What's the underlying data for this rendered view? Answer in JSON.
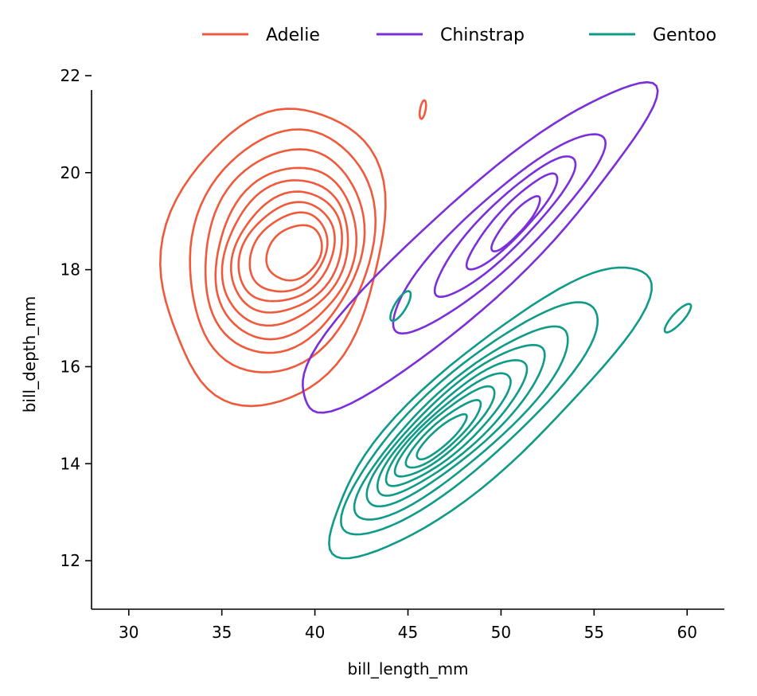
{
  "chart_data": {
    "type": "kde-contour",
    "title": "",
    "xlabel": "bill_length_mm",
    "ylabel": "bill_depth_mm",
    "xlim": [
      28,
      62
    ],
    "ylim": [
      11,
      22
    ],
    "x_ticks": [
      30,
      35,
      40,
      45,
      50,
      55,
      60
    ],
    "y_ticks": [
      12,
      14,
      16,
      18,
      20,
      22
    ],
    "legend_position": "top-right",
    "grid": false,
    "series": [
      {
        "name": "Adelie",
        "color": "#f05a3c",
        "levels": [
          {
            "cx": 37.8,
            "cy": 18.3,
            "rx": 6.0,
            "ry": 3.0,
            "tilt": 0.12
          },
          {
            "cx": 38.2,
            "cy": 18.4,
            "rx": 5.0,
            "ry": 2.45,
            "tilt": 0.12
          },
          {
            "cx": 38.3,
            "cy": 18.4,
            "rx": 4.3,
            "ry": 2.05,
            "tilt": 0.12
          },
          {
            "cx": 38.4,
            "cy": 18.35,
            "rx": 3.8,
            "ry": 1.72,
            "tilt": 0.12
          },
          {
            "cx": 38.4,
            "cy": 18.35,
            "rx": 3.4,
            "ry": 1.45,
            "tilt": 0.12
          },
          {
            "cx": 38.5,
            "cy": 18.35,
            "rx": 3.0,
            "ry": 1.2,
            "tilt": 0.12
          },
          {
            "cx": 38.5,
            "cy": 18.35,
            "rx": 2.6,
            "ry": 0.98,
            "tilt": 0.12
          },
          {
            "cx": 38.6,
            "cy": 18.35,
            "rx": 2.1,
            "ry": 0.78,
            "tilt": 0.12
          },
          {
            "cx": 38.9,
            "cy": 18.35,
            "rx": 1.5,
            "ry": 0.55,
            "tilt": 0.1
          }
        ],
        "islands": [
          {
            "cx": 45.8,
            "cy": 21.3,
            "rx": 0.22,
            "ry": 0.13,
            "tilt": 0.9
          }
        ]
      },
      {
        "name": "Chinstrap",
        "color": "#7b2fd9",
        "levels": [
          {
            "cx": 48.5,
            "cy": 18.4,
            "rx": 10.0,
            "ry": 1.3,
            "tilt": 0.32
          },
          {
            "cx": 49.8,
            "cy": 18.75,
            "rx": 6.0,
            "ry": 0.85,
            "tilt": 0.32
          },
          {
            "cx": 50.2,
            "cy": 18.9,
            "rx": 4.0,
            "ry": 0.6,
            "tilt": 0.34
          },
          {
            "cx": 50.6,
            "cy": 19.0,
            "rx": 2.6,
            "ry": 0.4,
            "tilt": 0.36
          },
          {
            "cx": 50.8,
            "cy": 18.95,
            "rx": 1.4,
            "ry": 0.25,
            "tilt": 0.38
          }
        ],
        "islands": []
      },
      {
        "name": "Gentoo",
        "color": "#0f9b88",
        "levels": [
          {
            "cx": 49.2,
            "cy": 15.1,
            "rx": 9.0,
            "ry": 1.45,
            "tilt": 0.3
          },
          {
            "cx": 48.3,
            "cy": 14.95,
            "rx": 7.2,
            "ry": 1.15,
            "tilt": 0.3
          },
          {
            "cx": 47.9,
            "cy": 14.85,
            "rx": 6.0,
            "ry": 0.95,
            "tilt": 0.3
          },
          {
            "cx": 47.6,
            "cy": 14.8,
            "rx": 5.0,
            "ry": 0.8,
            "tilt": 0.3
          },
          {
            "cx": 47.4,
            "cy": 14.75,
            "rx": 4.2,
            "ry": 0.67,
            "tilt": 0.3
          },
          {
            "cx": 47.2,
            "cy": 14.7,
            "rx": 3.5,
            "ry": 0.55,
            "tilt": 0.3
          },
          {
            "cx": 47.0,
            "cy": 14.65,
            "rx": 2.8,
            "ry": 0.44,
            "tilt": 0.3
          },
          {
            "cx": 46.9,
            "cy": 14.6,
            "rx": 2.1,
            "ry": 0.33,
            "tilt": 0.3
          },
          {
            "cx": 46.8,
            "cy": 14.55,
            "rx": 1.4,
            "ry": 0.22,
            "tilt": 0.3
          }
        ],
        "islands": [
          {
            "cx": 59.5,
            "cy": 17.0,
            "rx": 0.75,
            "ry": 0.15,
            "tilt": 0.35
          },
          {
            "cx": 44.6,
            "cy": 17.25,
            "rx": 0.6,
            "ry": 0.18,
            "tilt": 0.45
          }
        ]
      }
    ]
  }
}
